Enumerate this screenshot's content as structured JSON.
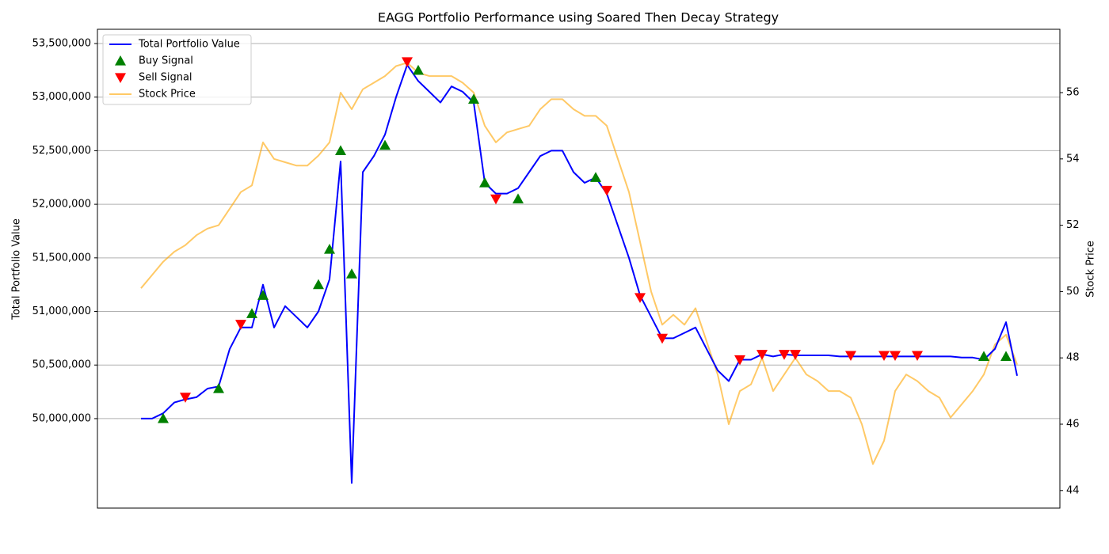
{
  "chart_data": {
    "type": "line",
    "title": "EAGG Portfolio Performance using Soared Then Decay Strategy",
    "ylabel": "Total Portfolio Value",
    "y2label": "Stock Price",
    "ylim": [
      49165000,
      53633000
    ],
    "yticks": [
      {
        "value": 50000000,
        "label": "50,000,000"
      },
      {
        "value": 50500000,
        "label": "50,500,000"
      },
      {
        "value": 51000000,
        "label": "51,000,000"
      },
      {
        "value": 51500000,
        "label": "51,500,000"
      },
      {
        "value": 52000000,
        "label": "52,000,000"
      },
      {
        "value": 52500000,
        "label": "52,500,000"
      },
      {
        "value": 53000000,
        "label": "53,000,000"
      },
      {
        "value": 53500000,
        "label": "53,500,000"
      }
    ],
    "y2lim": [
      43.47,
      57.91
    ],
    "y2ticks": [
      44,
      46,
      48,
      50,
      52,
      54,
      56
    ],
    "grid": true,
    "legend": "upper left",
    "series": [
      {
        "name": "Total Portfolio Value",
        "color": "#0000ff",
        "style": "line",
        "values": [
          50000000,
          50000000,
          50050000,
          50150000,
          50180000,
          50200000,
          50280000,
          50300000,
          50650000,
          50850000,
          50850000,
          51250000,
          50850000,
          51050000,
          50950000,
          50850000,
          51000000,
          51300000,
          52400000,
          49400000,
          52300000,
          52450000,
          52650000,
          53000000,
          53300000,
          53150000,
          53050000,
          52950000,
          53100000,
          53050000,
          52950000,
          52200000,
          52100000,
          52100000,
          52150000,
          52300000,
          52450000,
          52500000,
          52500000,
          52300000,
          52200000,
          52250000,
          52100000,
          51800000,
          51500000,
          51150000,
          50950000,
          50750000,
          50750000,
          50800000,
          50850000,
          50650000,
          50450000,
          50350000,
          50550000,
          50550000,
          50600000,
          50580000,
          50600000,
          50590000,
          50590000,
          50590000,
          50590000,
          50580000,
          50580000,
          50580000,
          50580000,
          50580000,
          50580000,
          50580000,
          50580000,
          50580000,
          50580000,
          50580000,
          50570000,
          50570000,
          50550000,
          50650000,
          50900000,
          50400000
        ]
      },
      {
        "name": "Buy Signal",
        "color": "#008000",
        "style": "triangle-up",
        "values": [
          null,
          null,
          50000000,
          null,
          null,
          null,
          null,
          50280000,
          null,
          null,
          50980000,
          51150000,
          null,
          null,
          null,
          null,
          51250000,
          51580000,
          52500000,
          51350000,
          null,
          null,
          52550000,
          null,
          null,
          53250000,
          null,
          null,
          null,
          null,
          52980000,
          52200000,
          null,
          null,
          52050000,
          null,
          null,
          null,
          null,
          null,
          null,
          52250000,
          null,
          null,
          null,
          null,
          null,
          null,
          null,
          null,
          null,
          null,
          null,
          null,
          null,
          null,
          null,
          null,
          null,
          null,
          null,
          null,
          null,
          null,
          null,
          null,
          null,
          null,
          null,
          null,
          null,
          null,
          null,
          null,
          null,
          null,
          50580000,
          null,
          50580000,
          null
        ]
      },
      {
        "name": "Sell Signal",
        "color": "#ff0000",
        "style": "triangle-down",
        "values": [
          null,
          null,
          null,
          null,
          50200000,
          null,
          null,
          null,
          null,
          50880000,
          null,
          null,
          null,
          null,
          null,
          null,
          null,
          null,
          null,
          null,
          null,
          null,
          null,
          null,
          53330000,
          null,
          null,
          null,
          null,
          null,
          null,
          null,
          52050000,
          null,
          null,
          null,
          null,
          null,
          null,
          null,
          null,
          null,
          52130000,
          null,
          null,
          51130000,
          null,
          50750000,
          null,
          null,
          null,
          null,
          null,
          null,
          50550000,
          null,
          50600000,
          null,
          50600000,
          50600000,
          null,
          null,
          null,
          null,
          50590000,
          null,
          null,
          50590000,
          50590000,
          null,
          50590000,
          null,
          null,
          null,
          null,
          null,
          null,
          null,
          null,
          null
        ]
      },
      {
        "name": "Stock Price",
        "color": "#ffa500",
        "style": "line",
        "axis": "y2",
        "opacity": 0.6,
        "values": [
          50.1,
          50.5,
          50.9,
          51.2,
          51.4,
          51.7,
          51.9,
          52,
          52.5,
          53,
          53.2,
          54.5,
          54,
          53.9,
          53.8,
          53.8,
          54.1,
          54.5,
          56,
          55.5,
          56.1,
          56.3,
          56.5,
          56.8,
          56.9,
          56.6,
          56.5,
          56.5,
          56.5,
          56.3,
          56,
          55,
          54.5,
          54.8,
          54.9,
          55,
          55.5,
          55.8,
          55.8,
          55.5,
          55.3,
          55.3,
          55,
          54,
          53,
          51.5,
          50,
          49,
          49.3,
          49,
          49.5,
          48.5,
          47.5,
          46,
          47,
          47.2,
          48,
          47,
          47.5,
          48,
          47.5,
          47.3,
          47,
          47,
          46.8,
          46,
          44.8,
          45.5,
          47,
          47.5,
          47.3,
          47,
          46.8,
          46.2,
          46.6,
          47,
          47.5,
          48.4,
          48.7,
          47.8
        ]
      }
    ]
  }
}
